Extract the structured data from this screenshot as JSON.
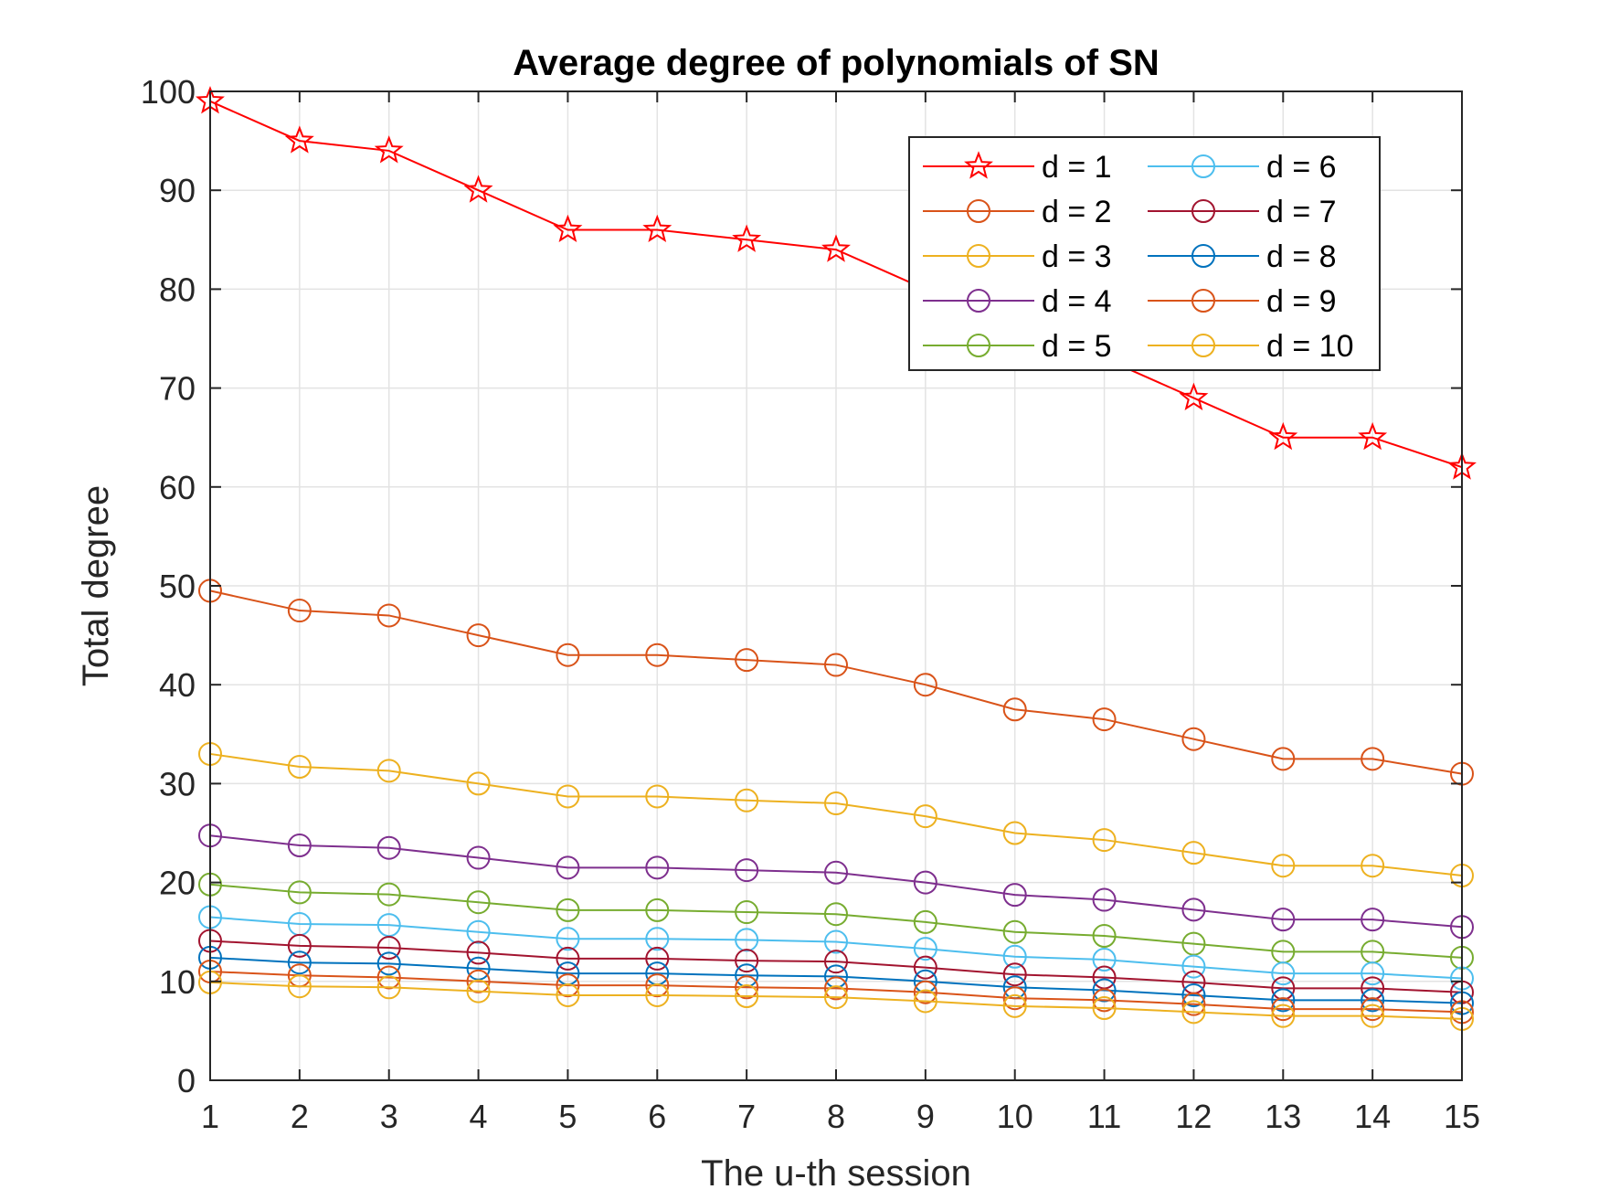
{
  "chart_data": {
    "type": "line",
    "title": "Average degree of polynomials of SN",
    "xlabel": "The u-th session",
    "ylabel": "Total degree",
    "x": [
      1,
      2,
      3,
      4,
      5,
      6,
      7,
      8,
      9,
      10,
      11,
      12,
      13,
      14,
      15
    ],
    "xlim": [
      1,
      15
    ],
    "ylim": [
      0,
      100
    ],
    "xticks": [
      "1",
      "2",
      "3",
      "4",
      "5",
      "6",
      "7",
      "8",
      "9",
      "10",
      "11",
      "12",
      "13",
      "14",
      "15"
    ],
    "yticks": [
      "0",
      "10",
      "20",
      "30",
      "40",
      "50",
      "60",
      "70",
      "80",
      "90",
      "100"
    ],
    "grid": true,
    "legend_position": "top-right",
    "legend_columns": 2,
    "series": [
      {
        "name": "d = 1",
        "color": "#ff0000",
        "marker": "star",
        "values": [
          99,
          95,
          94,
          90,
          86,
          86,
          85,
          84,
          80,
          75,
          73,
          69,
          65,
          65,
          62
        ]
      },
      {
        "name": "d = 2",
        "color": "#d95319",
        "marker": "circle",
        "values": [
          49.5,
          47.5,
          47,
          45,
          43,
          43,
          42.5,
          42,
          40,
          37.5,
          36.5,
          34.5,
          32.5,
          32.5,
          31
        ]
      },
      {
        "name": "d = 3",
        "color": "#edb120",
        "marker": "circle",
        "values": [
          33,
          31.7,
          31.3,
          30,
          28.7,
          28.7,
          28.3,
          28,
          26.7,
          25,
          24.3,
          23,
          21.7,
          21.7,
          20.7
        ]
      },
      {
        "name": "d = 4",
        "color": "#7e2f8e",
        "marker": "circle",
        "values": [
          24.75,
          23.75,
          23.5,
          22.5,
          21.5,
          21.5,
          21.25,
          21,
          20,
          18.75,
          18.25,
          17.25,
          16.25,
          16.25,
          15.5
        ]
      },
      {
        "name": "d = 5",
        "color": "#77ac30",
        "marker": "circle",
        "values": [
          19.8,
          19,
          18.8,
          18,
          17.2,
          17.2,
          17,
          16.8,
          16,
          15,
          14.6,
          13.8,
          13,
          13,
          12.4
        ]
      },
      {
        "name": "d = 6",
        "color": "#4dbeee",
        "marker": "circle",
        "values": [
          16.5,
          15.8,
          15.7,
          15,
          14.3,
          14.3,
          14.2,
          14,
          13.3,
          12.5,
          12.2,
          11.5,
          10.8,
          10.8,
          10.3
        ]
      },
      {
        "name": "d = 7",
        "color": "#a2142f",
        "marker": "circle",
        "values": [
          14.1,
          13.6,
          13.4,
          12.9,
          12.3,
          12.3,
          12.1,
          12,
          11.4,
          10.7,
          10.4,
          9.9,
          9.3,
          9.3,
          8.9
        ]
      },
      {
        "name": "d = 8",
        "color": "#0072bd",
        "marker": "circle",
        "values": [
          12.4,
          11.9,
          11.8,
          11.3,
          10.8,
          10.8,
          10.6,
          10.5,
          10,
          9.4,
          9.1,
          8.6,
          8.1,
          8.1,
          7.8
        ]
      },
      {
        "name": "d = 9",
        "color": "#d95319",
        "marker": "circle",
        "values": [
          11,
          10.6,
          10.4,
          10,
          9.6,
          9.6,
          9.4,
          9.3,
          8.9,
          8.3,
          8.1,
          7.7,
          7.2,
          7.2,
          6.9
        ]
      },
      {
        "name": "d = 10",
        "color": "#edb120",
        "marker": "circle",
        "values": [
          9.9,
          9.5,
          9.4,
          9,
          8.6,
          8.6,
          8.5,
          8.4,
          8,
          7.5,
          7.3,
          6.9,
          6.5,
          6.5,
          6.2
        ]
      }
    ]
  }
}
